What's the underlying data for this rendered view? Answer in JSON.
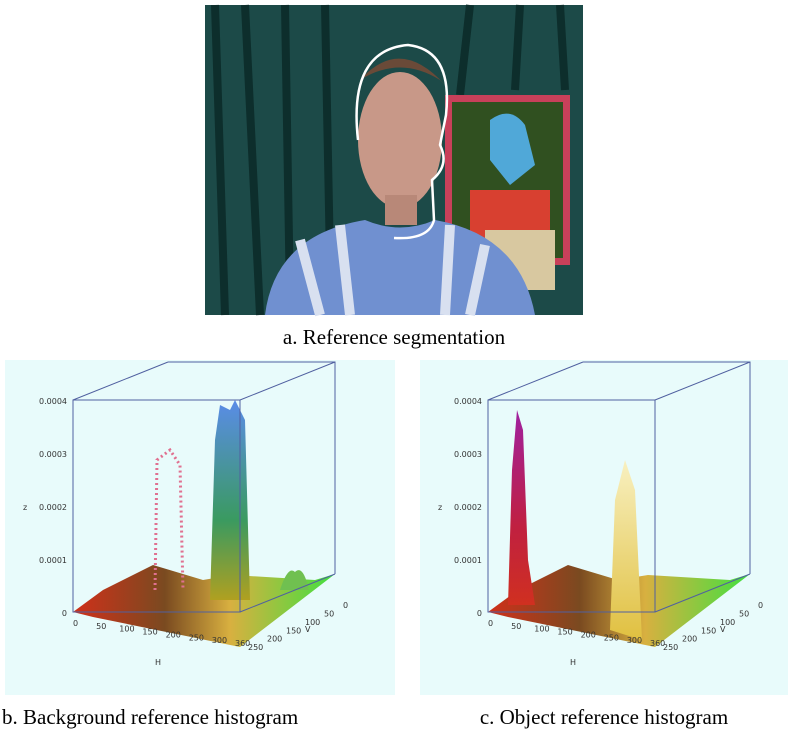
{
  "figure": {
    "panels": [
      {
        "caption": "a. Reference segmentation"
      },
      {
        "caption": "b. Background reference histogram",
        "axis_names": [
          "z",
          "H",
          "V"
        ],
        "z_ticks": [
          "0.0004",
          "0.0003",
          "0.0002",
          "0.0001",
          "0"
        ],
        "h_ticks": [
          "0",
          "50",
          "100",
          "150",
          "200",
          "250",
          "300",
          "360"
        ],
        "v_ticks": [
          "250",
          "200",
          "150",
          "100",
          "50",
          "0"
        ]
      },
      {
        "caption": "c. Object reference histogram",
        "axis_names": [
          "z",
          "H",
          "V"
        ],
        "z_ticks": [
          "0.0004",
          "0.0003",
          "0.0002",
          "0.0001",
          "0"
        ],
        "h_ticks": [
          "0",
          "50",
          "100",
          "150",
          "200",
          "250",
          "300",
          "360"
        ],
        "v_ticks": [
          "250",
          "200",
          "150",
          "100",
          "50",
          "0"
        ]
      }
    ]
  }
}
